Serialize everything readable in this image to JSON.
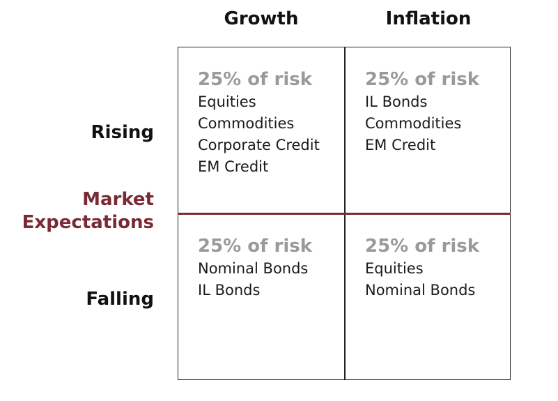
{
  "columns": [
    "Growth",
    "Inflation"
  ],
  "rows": [
    "Rising",
    "Falling"
  ],
  "axis_label": {
    "line1": "Market",
    "line2": "Expectations"
  },
  "colors": {
    "accent": "#7a2a35",
    "cell_title": "#9a9a9a",
    "text": "#1a1a1a"
  },
  "cells": {
    "growth_rising": {
      "title": "25% of risk",
      "items": [
        "Equities",
        "Commodities",
        "Corporate Credit",
        "EM Credit"
      ]
    },
    "inflation_rising": {
      "title": "25% of risk",
      "items": [
        "IL Bonds",
        "Commodities",
        "EM Credit"
      ]
    },
    "growth_falling": {
      "title": "25% of risk",
      "items": [
        "Nominal Bonds",
        "IL Bonds"
      ]
    },
    "inflation_falling": {
      "title": "25% of risk",
      "items": [
        "Equities",
        "Nominal Bonds"
      ]
    }
  }
}
